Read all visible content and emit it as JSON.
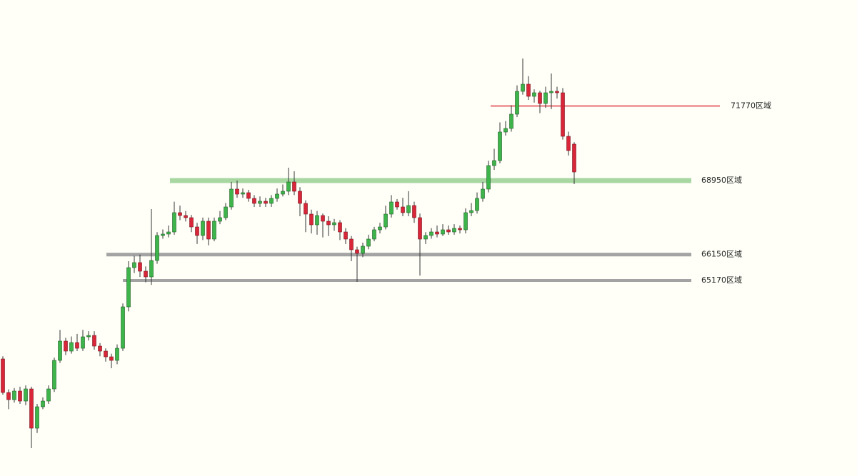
{
  "chart_data": {
    "type": "candlestick",
    "ylim": [
      57772,
      75781
    ],
    "up_color": "#3db54a",
    "down_color": "#d92638",
    "open": [
      62200,
      60931,
      60661,
      60985,
      60607,
      61066,
      59581,
      60391,
      60607,
      61066,
      62146,
      62875,
      62497,
      62821,
      62605,
      63037,
      63091,
      62686,
      62497,
      62281,
      62146,
      62605,
      64171,
      65656,
      65845,
      65521,
      65305,
      65926,
      66871,
      66925,
      67006,
      67735,
      67627,
      67546,
      67195,
      66871,
      67411,
      66736,
      67411,
      67546,
      67951,
      68626,
      68437,
      68491,
      68275,
      68086,
      68167,
      68086,
      68275,
      68437,
      68545,
      68896,
      68545,
      68086,
      67681,
      67276,
      67627,
      67411,
      67276,
      67357,
      67006,
      66736,
      66331,
      66196,
      66466,
      66736,
      67087,
      67195,
      67681,
      68140,
      67951,
      67735,
      68005,
      67546,
      66736,
      66871,
      67006,
      66925,
      67087,
      67006,
      67141,
      67087,
      67735,
      67816,
      68275,
      68626,
      69517,
      69706,
      70786,
      70921,
      71461,
      72325,
      72595,
      72136,
      72271,
      71866,
      72271,
      72325,
      72271,
      70624,
      70327
    ],
    "high": [
      62300,
      61050,
      61100,
      61150,
      61200,
      61150,
      60500,
      60750,
      61200,
      62250,
      63300,
      63000,
      63050,
      63150,
      63300,
      63250,
      63250,
      62800,
      62600,
      62400,
      62750,
      64300,
      65900,
      66100,
      66150,
      65700,
      67870,
      67000,
      67100,
      67250,
      68150,
      68000,
      67800,
      67650,
      67350,
      67550,
      67550,
      67550,
      67800,
      68100,
      68900,
      68950,
      68650,
      68600,
      68400,
      68350,
      68300,
      68400,
      68650,
      68800,
      69437,
      69300,
      68700,
      68200,
      67850,
      67800,
      67700,
      67600,
      67500,
      67450,
      67150,
      66850,
      66450,
      66600,
      66900,
      67200,
      67350,
      68000,
      68400,
      68250,
      68300,
      68550,
      68150,
      67700,
      67000,
      67150,
      67250,
      67300,
      67250,
      67300,
      67250,
      67900,
      68100,
      68500,
      68900,
      69700,
      70150,
      71150,
      71200,
      71800,
      72550,
      73567,
      72900,
      72400,
      72350,
      72500,
      73000,
      72500,
      72450,
      70800,
      70400
    ],
    "low": [
      60850,
      60300,
      60550,
      60500,
      60450,
      58825,
      59400,
      60300,
      60500,
      60950,
      62050,
      62350,
      62400,
      62500,
      62500,
      62900,
      62550,
      62300,
      62100,
      61850,
      62000,
      62500,
      64000,
      65450,
      65300,
      65100,
      65000,
      65800,
      66750,
      66800,
      66900,
      67450,
      67400,
      67000,
      66550,
      66700,
      66500,
      66650,
      67300,
      67450,
      67850,
      68300,
      68300,
      68150,
      67950,
      67950,
      67950,
      67950,
      68150,
      68350,
      68400,
      68400,
      67600,
      67000,
      66950,
      66900,
      66800,
      66850,
      67050,
      66700,
      66550,
      65900,
      65116,
      66050,
      66350,
      66650,
      66950,
      67100,
      67550,
      67850,
      67600,
      67600,
      67350,
      65352,
      66550,
      66750,
      66800,
      66850,
      66900,
      66900,
      66950,
      66950,
      67600,
      67700,
      68150,
      68500,
      69350,
      69600,
      70650,
      70800,
      71350,
      72200,
      72000,
      71900,
      71500,
      71700,
      71650,
      72050,
      70500,
      69900,
      68815
    ],
    "close": [
      60931,
      60661,
      60985,
      60607,
      61066,
      59581,
      60391,
      60607,
      61066,
      62146,
      62875,
      62497,
      62821,
      62605,
      63037,
      63091,
      62686,
      62497,
      62281,
      62146,
      62605,
      64171,
      65656,
      65845,
      65521,
      65305,
      65926,
      66871,
      66925,
      67006,
      67735,
      67627,
      67546,
      67195,
      66871,
      67411,
      66736,
      67411,
      67546,
      67951,
      68626,
      68437,
      68491,
      68275,
      68086,
      68167,
      68086,
      68275,
      68437,
      68545,
      68896,
      68545,
      68086,
      67681,
      67276,
      67627,
      67411,
      67276,
      67357,
      67006,
      66736,
      66331,
      66196,
      66466,
      66736,
      67087,
      67195,
      67681,
      68140,
      67951,
      67735,
      68005,
      67546,
      66736,
      66871,
      67006,
      66925,
      67087,
      67006,
      67141,
      67087,
      67735,
      67816,
      68275,
      68626,
      69517,
      69706,
      70786,
      70921,
      71461,
      72325,
      72595,
      72136,
      72271,
      71866,
      72271,
      72325,
      72271,
      70624,
      70084,
      69274
    ],
    "levels": [
      {
        "value": 71770,
        "label": "71770区域",
        "color": "#f0a0a0"
      },
      {
        "value": 68950,
        "label": "68950区域",
        "color": "#a9d7a2"
      },
      {
        "value": 66150,
        "label": "66150区域",
        "color": "#a3a3a3"
      },
      {
        "value": 65170,
        "label": "65170区域",
        "color": "#a3a3a3"
      }
    ]
  }
}
